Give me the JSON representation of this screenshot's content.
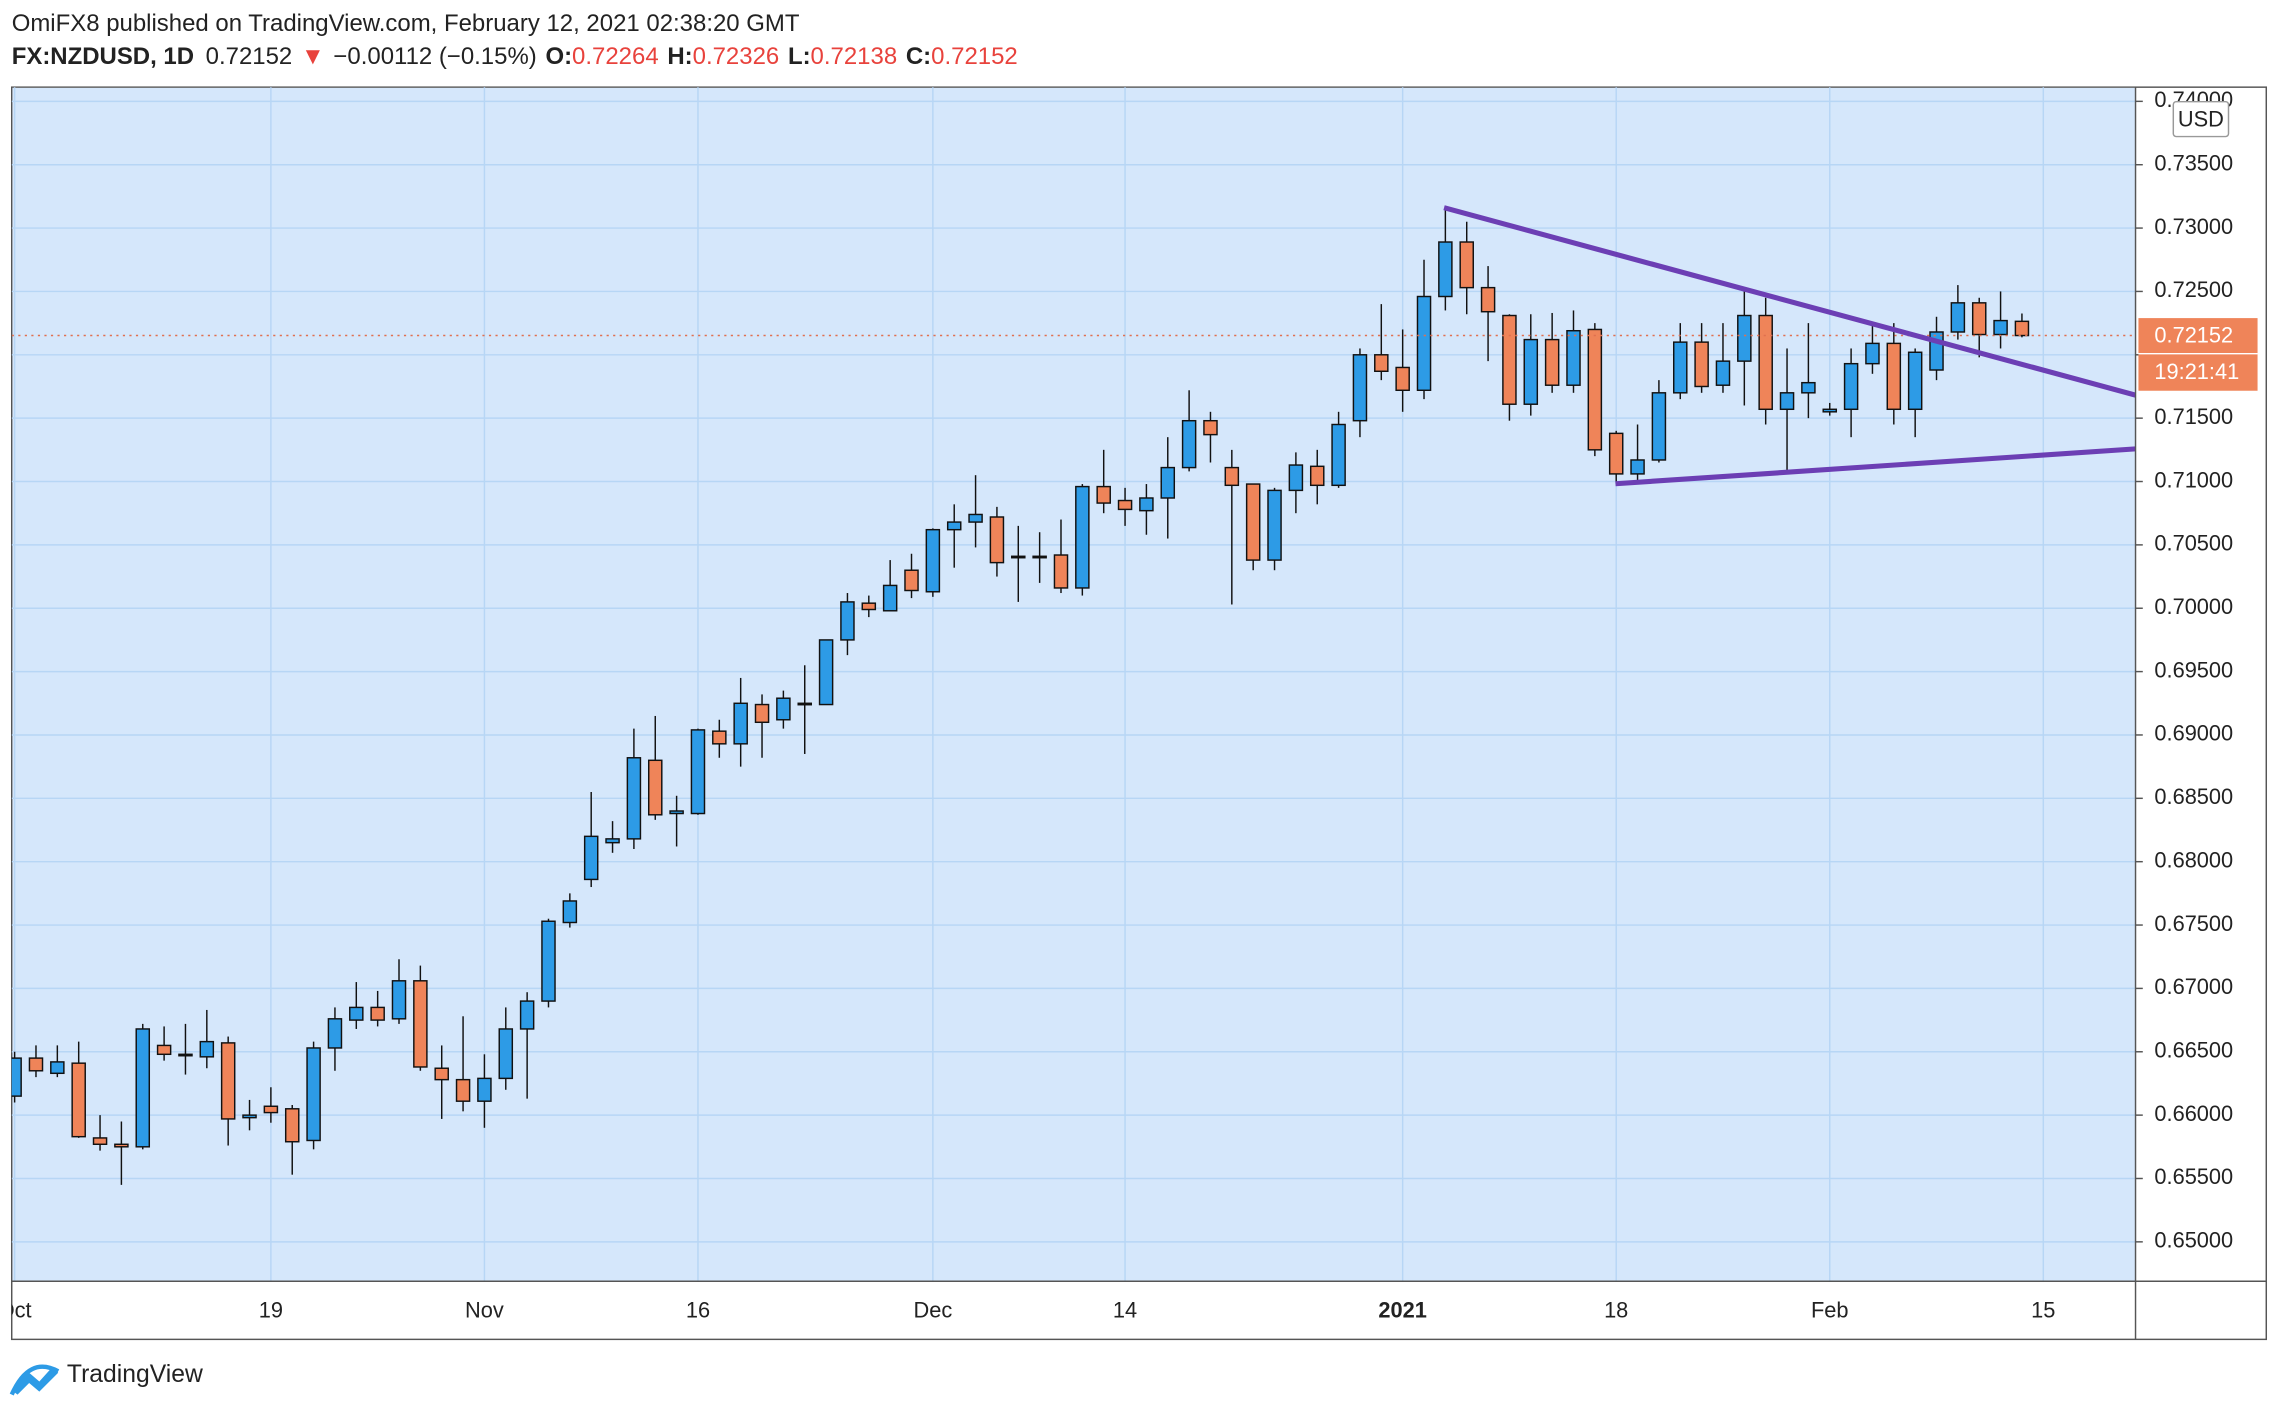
{
  "chart_data": {
    "type": "candlestick",
    "title": "OmiFX8 published on TradingView.com, February 12, 2021 02:38:20 GMT",
    "legend": {
      "symbol": "FX:NZDUSD, 1D",
      "last": "0.72152",
      "arrow": "▼",
      "change": "−0.00112 (−0.15%)",
      "ohlc": [
        {
          "label": "O:",
          "value": "0.72264"
        },
        {
          "label": "H:",
          "value": "0.72326"
        },
        {
          "label": "L:",
          "value": "0.72138"
        },
        {
          "label": "C:",
          "value": "0.72152"
        }
      ]
    },
    "currency": "USD",
    "price_label": "0.72152",
    "countdown": "19:21:41",
    "brand": "TradingView",
    "up_color": "#2d9be6",
    "down_color": "#ef8459",
    "grid": true,
    "categories": [
      "Oct",
      null,
      null,
      null,
      null,
      null,
      null,
      null,
      null,
      null,
      null,
      null,
      "19",
      null,
      null,
      null,
      null,
      null,
      null,
      null,
      null,
      null,
      "Nov",
      null,
      null,
      null,
      null,
      null,
      null,
      null,
      null,
      null,
      "16",
      null,
      null,
      null,
      null,
      null,
      null,
      null,
      null,
      null,
      null,
      "Dec",
      null,
      null,
      null,
      null,
      null,
      null,
      null,
      null,
      "14",
      null,
      null,
      null,
      null,
      null,
      null,
      null,
      null,
      null,
      null,
      null,
      null,
      "2021",
      null,
      null,
      null,
      null,
      null,
      null,
      null,
      null,
      null,
      "18",
      null,
      null,
      null,
      null,
      null,
      null,
      null,
      null,
      null,
      "Feb",
      null,
      null,
      null,
      null,
      null,
      null,
      null,
      null,
      null,
      "15"
    ],
    "open": [
      0.6615,
      0.6645,
      0.6633,
      0.6641,
      0.6582,
      0.6577,
      0.6575,
      0.6655,
      0.6648,
      0.6646,
      0.6657,
      0.6598,
      0.6607,
      0.6605,
      0.658,
      0.6653,
      0.6675,
      0.6685,
      0.6676,
      0.6706,
      0.6637,
      0.6628,
      0.6611,
      0.6629,
      0.6668,
      0.669,
      0.6752,
      0.6786,
      0.6815,
      0.6818,
      0.688,
      0.6838,
      0.6838,
      0.6903,
      0.6893,
      0.6924,
      0.6912,
      0.6924,
      0.6924,
      0.6975,
      0.7004,
      0.6998,
      0.703,
      0.7013,
      0.7062,
      0.7068,
      0.7072,
      0.704,
      0.7041,
      0.7042,
      0.7016,
      0.7096,
      0.7085,
      0.7077,
      0.7087,
      0.7111,
      0.7148,
      0.7111,
      0.7098,
      0.7038,
      0.7093,
      0.7112,
      0.7097,
      0.7148,
      0.72,
      0.719,
      0.7172,
      0.7246,
      0.7289,
      0.7253,
      0.7231,
      0.7161,
      0.7212,
      0.7176,
      0.722,
      0.7138,
      0.7106,
      0.7117,
      0.717,
      0.721,
      0.7176,
      0.7195,
      0.7231,
      0.7157,
      0.717,
      0.7155,
      0.7157,
      0.7193,
      0.7209,
      0.7157,
      0.7188,
      0.7218,
      0.7241,
      0.7216,
      0.72264,
      null
    ],
    "high": [
      0.665,
      0.6655,
      0.6655,
      0.6658,
      0.66,
      0.6595,
      0.6672,
      0.667,
      0.6672,
      0.6683,
      0.6662,
      0.6612,
      0.6622,
      0.6608,
      0.6658,
      0.6685,
      0.6705,
      0.6698,
      0.6723,
      0.6718,
      0.6655,
      0.6678,
      0.6648,
      0.6685,
      0.6697,
      0.6755,
      0.6775,
      0.6855,
      0.6832,
      0.6905,
      0.6915,
      0.6852,
      0.6905,
      0.6912,
      0.6945,
      0.6932,
      0.6935,
      0.6955,
      0.6975,
      0.7012,
      0.701,
      0.7038,
      0.7043,
      0.7063,
      0.7082,
      0.7105,
      0.708,
      0.7065,
      0.706,
      0.707,
      0.7098,
      0.7125,
      0.7095,
      0.7098,
      0.7135,
      0.7172,
      0.7155,
      0.7125,
      0.7098,
      0.7095,
      0.7123,
      0.7125,
      0.7155,
      0.7205,
      0.724,
      0.722,
      0.7275,
      0.7315,
      0.7305,
      0.727,
      0.7232,
      0.7232,
      0.7233,
      0.7235,
      0.7225,
      0.714,
      0.7145,
      0.718,
      0.7225,
      0.7225,
      0.7225,
      0.725,
      0.7245,
      0.7205,
      0.7225,
      0.7162,
      0.7205,
      0.7225,
      0.7225,
      0.7205,
      0.723,
      0.7255,
      0.7245,
      0.725,
      0.72326,
      null
    ],
    "low": [
      0.661,
      0.663,
      0.663,
      0.6582,
      0.6572,
      0.6545,
      0.6573,
      0.6643,
      0.6632,
      0.6637,
      0.6576,
      0.6588,
      0.6594,
      0.6553,
      0.6573,
      0.6635,
      0.6668,
      0.667,
      0.6672,
      0.6635,
      0.6597,
      0.6603,
      0.659,
      0.662,
      0.6613,
      0.6685,
      0.6748,
      0.678,
      0.6807,
      0.681,
      0.6833,
      0.6812,
      0.6837,
      0.6882,
      0.6875,
      0.6882,
      0.6905,
      0.6885,
      0.6924,
      0.6963,
      0.6993,
      0.6998,
      0.7008,
      0.7009,
      0.7032,
      0.7048,
      0.7025,
      0.7005,
      0.702,
      0.7012,
      0.701,
      0.7075,
      0.7065,
      0.7058,
      0.7055,
      0.7108,
      0.7115,
      0.7003,
      0.703,
      0.703,
      0.7075,
      0.7082,
      0.7095,
      0.7135,
      0.718,
      0.7155,
      0.7165,
      0.7235,
      0.7232,
      0.7195,
      0.7148,
      0.7152,
      0.717,
      0.717,
      0.712,
      0.7098,
      0.7098,
      0.7115,
      0.7165,
      0.717,
      0.717,
      0.716,
      0.7145,
      0.7106,
      0.715,
      0.7152,
      0.7135,
      0.7185,
      0.7145,
      0.7135,
      0.718,
      0.7212,
      0.7198,
      0.7205,
      0.72138,
      null
    ],
    "close": [
      0.6645,
      0.6635,
      0.6642,
      0.6583,
      0.6577,
      0.6575,
      0.6668,
      0.6648,
      0.6648,
      0.6658,
      0.6597,
      0.66,
      0.6602,
      0.6579,
      0.6653,
      0.6676,
      0.6685,
      0.6675,
      0.6706,
      0.6638,
      0.6628,
      0.6611,
      0.6629,
      0.6668,
      0.669,
      0.6753,
      0.6769,
      0.682,
      0.6818,
      0.6882,
      0.6837,
      0.684,
      0.6904,
      0.6893,
      0.6925,
      0.691,
      0.6929,
      0.6925,
      0.6975,
      0.7005,
      0.6999,
      0.7018,
      0.7014,
      0.7062,
      0.7068,
      0.7074,
      0.7036,
      0.7041,
      0.704,
      0.7016,
      0.7096,
      0.7083,
      0.7078,
      0.7087,
      0.7111,
      0.7148,
      0.7137,
      0.7097,
      0.7038,
      0.7093,
      0.7113,
      0.7097,
      0.7145,
      0.72,
      0.7187,
      0.7172,
      0.7246,
      0.7289,
      0.7253,
      0.7234,
      0.7161,
      0.7212,
      0.7176,
      0.7219,
      0.7125,
      0.7106,
      0.7117,
      0.717,
      0.721,
      0.7175,
      0.7195,
      0.7231,
      0.7157,
      0.717,
      0.7178,
      0.7157,
      0.7193,
      0.7209,
      0.7157,
      0.7202,
      0.7218,
      0.7241,
      0.7216,
      0.7227,
      0.72152,
      null
    ],
    "ylim": [
      0.64689,
      0.74112
    ],
    "yticks": [
      {
        "value": 0.65,
        "label": "0.65000"
      },
      {
        "value": 0.655,
        "label": "0.65500"
      },
      {
        "value": 0.66,
        "label": "0.66000"
      },
      {
        "value": 0.665,
        "label": "0.66500"
      },
      {
        "value": 0.67,
        "label": "0.67000"
      },
      {
        "value": 0.675,
        "label": "0.67500"
      },
      {
        "value": 0.68,
        "label": "0.68000"
      },
      {
        "value": 0.685,
        "label": "0.68500"
      },
      {
        "value": 0.69,
        "label": "0.69000"
      },
      {
        "value": 0.695,
        "label": "0.69500"
      },
      {
        "value": 0.7,
        "label": "0.70000"
      },
      {
        "value": 0.705,
        "label": "0.70500"
      },
      {
        "value": 0.71,
        "label": "0.71000"
      },
      {
        "value": 0.715,
        "label": "0.71500"
      },
      {
        "value": 0.72,
        "label": "0.72000"
      },
      {
        "value": 0.725,
        "label": "0.72500"
      },
      {
        "value": 0.73,
        "label": "0.73000"
      },
      {
        "value": 0.735,
        "label": "0.73500"
      },
      {
        "value": 0.74,
        "label": "0.74000"
      }
    ]
  }
}
